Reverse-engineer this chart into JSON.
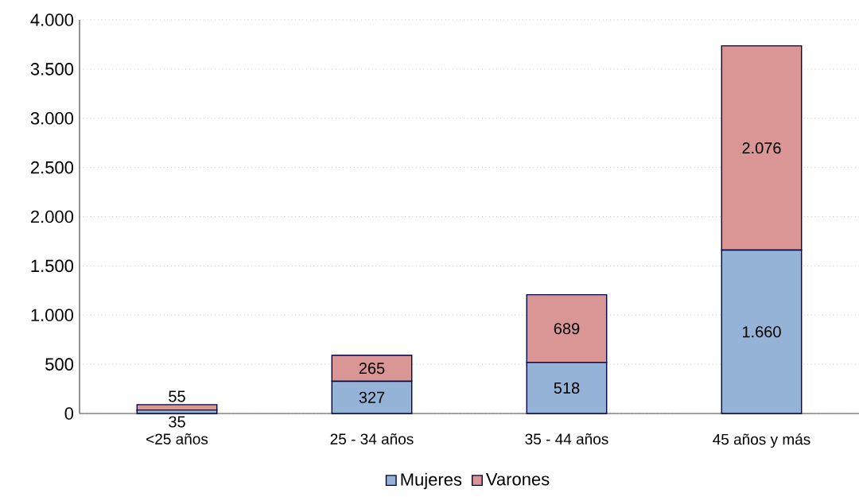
{
  "chart_data": {
    "type": "bar",
    "stacked": true,
    "categories": [
      "<25 años",
      "25 - 34 años",
      "35 - 44 años",
      "45 años y más"
    ],
    "series": [
      {
        "name": "Mujeres",
        "color": "#95b3d7",
        "values": [
          35,
          327,
          518,
          1660
        ],
        "value_labels": [
          "35",
          "327",
          "518",
          "1.660"
        ]
      },
      {
        "name": "Varones",
        "color": "#d99694",
        "values": [
          55,
          265,
          689,
          2076
        ],
        "value_labels": [
          "55",
          "265",
          "689",
          "2.076"
        ]
      }
    ],
    "ylim": [
      0,
      4000
    ],
    "yticks": [
      0,
      500,
      {
        "value": 1000,
        "label": "1.000"
      },
      {
        "value": 1500,
        "label": "1.500"
      },
      {
        "value": 2000,
        "label": "2.000"
      },
      {
        "value": 2500,
        "label": "2.500"
      },
      {
        "value": 3000,
        "label": "3.000"
      },
      {
        "value": 3500,
        "label": "3.500"
      },
      {
        "value": 4000,
        "label": "4.000"
      }
    ],
    "grid": "y",
    "legend": "bottom"
  }
}
